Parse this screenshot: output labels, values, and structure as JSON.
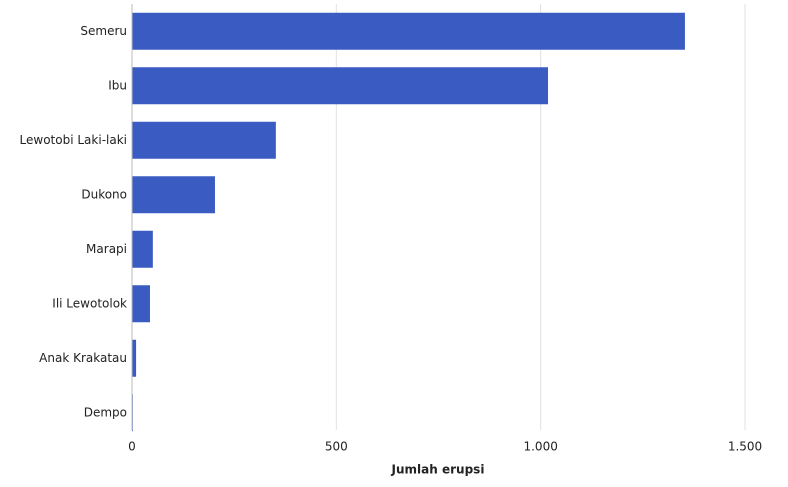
{
  "chart_data": {
    "type": "bar",
    "orientation": "horizontal",
    "x_label": "Jumlah erupsi",
    "categories": [
      "Semeru",
      "Ibu",
      "Lewotobi Laki-laki",
      "Dukono",
      "Marapi",
      "Ili Lewotolok",
      "Anak Krakatau",
      "Dempo"
    ],
    "values": [
      1353,
      1018,
      352,
      203,
      51,
      44,
      10,
      2
    ],
    "color": "#3a5bc2",
    "xlim": [
      0,
      1500
    ],
    "xticks": [
      0,
      500,
      {
        "value": 1000,
        "label": "1.000"
      },
      {
        "value": 1500,
        "label": "1.500"
      }
    ],
    "grid": true
  }
}
